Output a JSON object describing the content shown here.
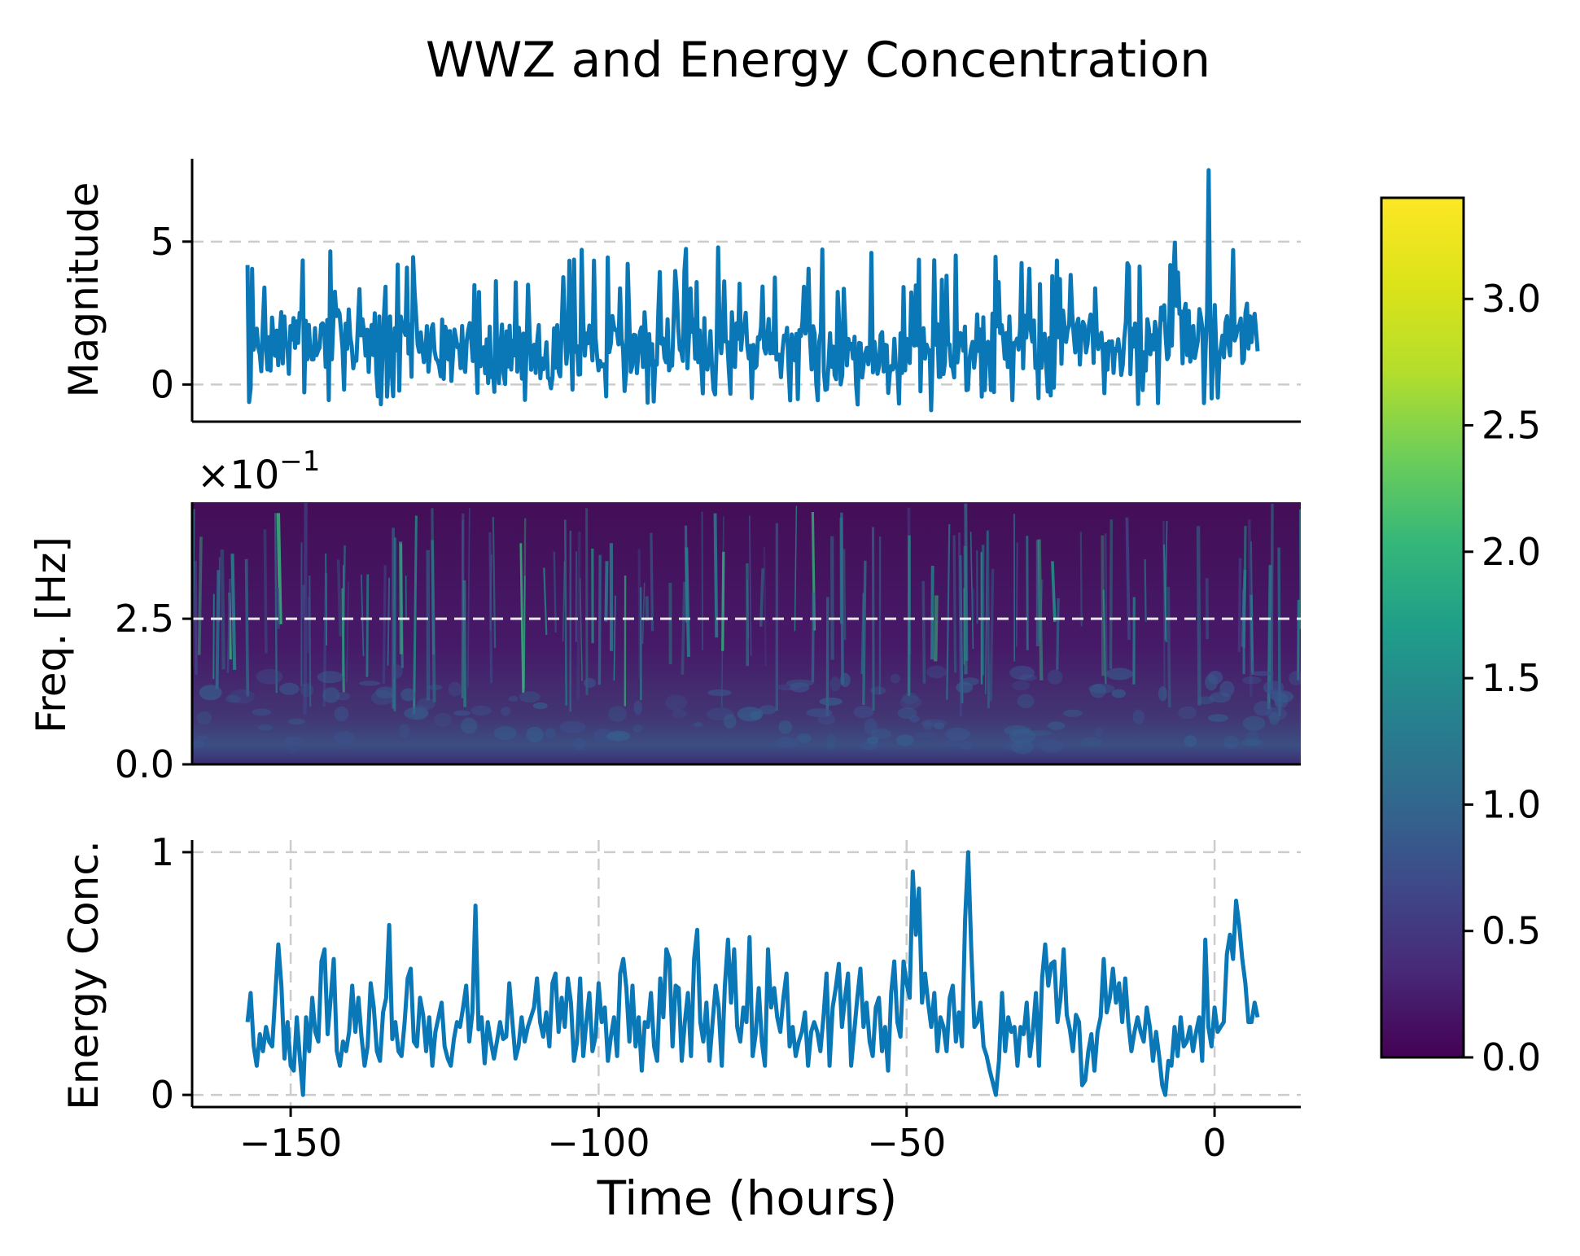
{
  "figure": {
    "title": "WWZ and Energy Concentration",
    "xlabel": "Time (hours)"
  },
  "chart_data": [
    {
      "panel": "magnitude",
      "type": "line",
      "ylabel": "Magnitude",
      "xlim": [
        -166,
        14
      ],
      "ylim": [
        -1.3,
        7.9
      ],
      "yticks": [
        0,
        5
      ],
      "ytick_labels": [
        "0",
        "5"
      ],
      "grid": "horizontal",
      "color": "#0a77b7",
      "x_start": -157,
      "x_end": 7,
      "n_points": 660,
      "notable_points": [
        {
          "x": -46,
          "y": -0.9,
          "label": "minimum"
        },
        {
          "x": -1,
          "y": 7.5,
          "label": "maximum"
        }
      ],
      "typical_range": [
        0.0,
        4.7
      ]
    },
    {
      "panel": "wwz",
      "type": "heatmap",
      "ylabel": "Freq. [Hz]",
      "offset_text": "×10",
      "offset_exponent": "−1",
      "xlim": [
        -166,
        14
      ],
      "ylim": [
        0.0,
        4.5
      ],
      "yticks": [
        0.0,
        2.5
      ],
      "ytick_labels": [
        "0.0",
        "2.5"
      ],
      "reference_line": 2.5,
      "colormap": "viridis",
      "colorbar": {
        "range": [
          0.0,
          3.4
        ],
        "ticks": [
          0.0,
          0.5,
          1.0,
          1.5,
          2.0,
          2.5,
          3.0
        ],
        "tick_labels": [
          "0.0",
          "0.5",
          "1.0",
          "1.5",
          "2.0",
          "2.5",
          "3.0"
        ]
      }
    },
    {
      "panel": "energy_concentration",
      "type": "line",
      "ylabel": "Energy Conc.",
      "xlim": [
        -166,
        14
      ],
      "ylim": [
        -0.05,
        1.05
      ],
      "yticks": [
        0,
        1
      ],
      "ytick_labels": [
        "0",
        "1"
      ],
      "xticks": [
        -150,
        -100,
        -50,
        0
      ],
      "xtick_labels": [
        "−150",
        "−100",
        "−50",
        "0"
      ],
      "grid": "both",
      "color": "#0a77b7",
      "x": [
        -157,
        -156.5,
        -156,
        -155.5,
        -155,
        -154.5,
        -154,
        -153.5,
        -153,
        -152,
        -151.5,
        -151,
        -150.5,
        -150,
        -149.5,
        -149,
        -148.5,
        -148,
        -147.5,
        -147,
        -146.5,
        -146,
        -145.5,
        -145,
        -144.5,
        -144,
        -143.5,
        -143,
        -142.5,
        -142,
        -141.5,
        -141,
        -140.5,
        -140,
        -139.5,
        -139,
        -138.5,
        -138,
        -137.5,
        -137,
        -136.5,
        -136,
        -135.5,
        -135,
        -134.5,
        -134,
        -133.5,
        -133,
        -132.5,
        -132,
        -131.5,
        -131,
        -130.5,
        -130,
        -129.5,
        -129,
        -128.5,
        -128,
        -127.5,
        -127,
        -126.5,
        -126,
        -125.5,
        -125,
        -124.5,
        -124,
        -123.5,
        -123,
        -122.5,
        -122,
        -121.5,
        -121,
        -120.5,
        -120,
        -119.5,
        -119,
        -118.5,
        -118,
        -117.5,
        -117,
        -116.5,
        -116,
        -115.5,
        -115,
        -114.5,
        -114,
        -113.5,
        -113,
        -112.5,
        -112,
        -111.5,
        -111,
        -110.5,
        -110,
        -109.5,
        -109,
        -108.5,
        -108,
        -107.5,
        -107,
        -106.5,
        -106,
        -105.5,
        -105,
        -104.5,
        -104,
        -103.5,
        -103,
        -102.5,
        -102,
        -101.5,
        -101,
        -100.5,
        -100,
        -99.5,
        -99,
        -98.5,
        -98,
        -97.5,
        -97,
        -96.5,
        -96,
        -95.5,
        -95,
        -94.5,
        -94,
        -93.5,
        -93,
        -92.5,
        -92,
        -91.5,
        -91,
        -90.5,
        -90,
        -89.5,
        -89,
        -88.5,
        -88,
        -87.5,
        -87,
        -86.5,
        -86,
        -85.5,
        -85,
        -84.5,
        -84,
        -83.5,
        -83,
        -82.5,
        -82,
        -81.5,
        -81,
        -80.5,
        -80,
        -79.5,
        -79,
        -78.5,
        -78,
        -77.5,
        -77,
        -76.5,
        -76,
        -75.5,
        -75,
        -74.5,
        -74,
        -73.5,
        -73,
        -72.5,
        -72,
        -71.5,
        -71,
        -70.5,
        -70,
        -69.5,
        -69,
        -68.5,
        -68,
        -67.5,
        -67,
        -66.5,
        -66,
        -65.5,
        -65,
        -64.5,
        -64,
        -63.5,
        -63,
        -62.5,
        -62,
        -61.5,
        -61,
        -60.5,
        -60,
        -59.5,
        -59,
        -58.5,
        -58,
        -57.5,
        -57,
        -56.5,
        -56,
        -55.5,
        -55,
        -54.5,
        -54,
        -53.5,
        -53,
        -52.5,
        -52,
        -51.5,
        -51,
        -50.5,
        -50,
        -49.5,
        -49,
        -48.5,
        -48,
        -47.5,
        -47,
        -46.5,
        -46,
        -45.5,
        -45,
        -44.5,
        -44,
        -43.5,
        -43,
        -42.5,
        -42,
        -41.5,
        -41,
        -40.5,
        -40,
        -39.5,
        -39,
        -38.5,
        -38,
        -37.5,
        -37,
        -36.5,
        -36,
        -35.5,
        -35,
        -34.5,
        -34,
        -33.5,
        -33,
        -32.5,
        -32,
        -31.5,
        -31,
        -30.5,
        -30,
        -29.5,
        -29,
        -28.5,
        -28,
        -27.5,
        -27,
        -26.5,
        -26,
        -25.5,
        -25,
        -24.5,
        -24,
        -23.5,
        -23,
        -22.5,
        -22,
        -21.5,
        -21,
        -20.5,
        -20,
        -19.5,
        -19,
        -18.5,
        -18,
        -17.5,
        -17,
        -16.5,
        -16,
        -15.5,
        -15,
        -14.5,
        -14,
        -13.5,
        -13,
        -12.5,
        -12,
        -11.5,
        -11,
        -10.5,
        -10,
        -9.5,
        -9,
        -8.5,
        -8,
        -7.5,
        -7,
        -6.5,
        -6,
        -5.5,
        -5,
        -4.5,
        -4,
        -3.5,
        -3,
        -2.5,
        -2,
        -1.5,
        -1,
        -0.5,
        0,
        0.5,
        1,
        1.5,
        2,
        2.5,
        3,
        3.5,
        4,
        4.5,
        5,
        5.5,
        6,
        6.5,
        7
      ],
      "y": [
        0.3,
        0.42,
        0.2,
        0.12,
        0.25,
        0.18,
        0.28,
        0.22,
        0.2,
        0.62,
        0.45,
        0.15,
        0.3,
        0.12,
        0.1,
        0.32,
        0.15,
        0.0,
        0.32,
        0.18,
        0.4,
        0.26,
        0.22,
        0.55,
        0.6,
        0.25,
        0.4,
        0.56,
        0.18,
        0.12,
        0.22,
        0.18,
        0.26,
        0.45,
        0.26,
        0.4,
        0.24,
        0.12,
        0.2,
        0.46,
        0.36,
        0.18,
        0.14,
        0.34,
        0.4,
        0.7,
        0.23,
        0.3,
        0.18,
        0.16,
        0.3,
        0.48,
        0.52,
        0.22,
        0.2,
        0.4,
        0.33,
        0.18,
        0.32,
        0.12,
        0.26,
        0.32,
        0.38,
        0.2,
        0.15,
        0.12,
        0.23,
        0.3,
        0.28,
        0.36,
        0.45,
        0.22,
        0.34,
        0.78,
        0.27,
        0.32,
        0.13,
        0.3,
        0.22,
        0.15,
        0.22,
        0.3,
        0.23,
        0.24,
        0.46,
        0.3,
        0.15,
        0.2,
        0.32,
        0.22,
        0.28,
        0.32,
        0.36,
        0.48,
        0.3,
        0.24,
        0.34,
        0.2,
        0.46,
        0.5,
        0.26,
        0.4,
        0.28,
        0.48,
        0.38,
        0.14,
        0.22,
        0.48,
        0.16,
        0.3,
        0.42,
        0.18,
        0.24,
        0.46,
        0.3,
        0.36,
        0.14,
        0.24,
        0.32,
        0.16,
        0.5,
        0.56,
        0.44,
        0.22,
        0.45,
        0.2,
        0.32,
        0.1,
        0.3,
        0.28,
        0.42,
        0.2,
        0.14,
        0.48,
        0.32,
        0.6,
        0.56,
        0.2,
        0.45,
        0.44,
        0.14,
        0.3,
        0.42,
        0.16,
        0.56,
        0.68,
        0.3,
        0.22,
        0.38,
        0.14,
        0.3,
        0.45,
        0.36,
        0.12,
        0.45,
        0.64,
        0.38,
        0.6,
        0.28,
        0.22,
        0.36,
        0.3,
        0.65,
        0.16,
        0.25,
        0.44,
        0.22,
        0.12,
        0.6,
        0.36,
        0.44,
        0.32,
        0.26,
        0.4,
        0.5,
        0.2,
        0.28,
        0.16,
        0.22,
        0.26,
        0.34,
        0.12,
        0.26,
        0.3,
        0.26,
        0.18,
        0.32,
        0.5,
        0.12,
        0.36,
        0.44,
        0.54,
        0.28,
        0.4,
        0.5,
        0.12,
        0.26,
        0.4,
        0.52,
        0.28,
        0.38,
        0.22,
        0.16,
        0.36,
        0.4,
        0.18,
        0.28,
        0.1,
        0.42,
        0.55,
        0.3,
        0.24,
        0.55,
        0.46,
        0.4,
        0.92,
        0.66,
        0.85,
        0.38,
        0.5,
        0.38,
        0.28,
        0.42,
        0.18,
        0.32,
        0.28,
        0.18,
        0.4,
        0.45,
        0.22,
        0.34,
        0.2,
        0.72,
        1.0,
        0.6,
        0.28,
        0.3,
        0.38,
        0.2,
        0.16,
        0.1,
        0.05,
        0.0,
        0.14,
        0.42,
        0.18,
        0.32,
        0.26,
        0.28,
        0.12,
        0.28,
        0.25,
        0.38,
        0.16,
        0.26,
        0.42,
        0.12,
        0.48,
        0.62,
        0.45,
        0.54,
        0.55,
        0.3,
        0.4,
        0.6,
        0.33,
        0.27,
        0.18,
        0.33,
        0.3,
        0.04,
        0.06,
        0.18,
        0.25,
        0.1,
        0.26,
        0.32,
        0.56,
        0.34,
        0.4,
        0.52,
        0.38,
        0.46,
        0.3,
        0.48,
        0.3,
        0.18,
        0.26,
        0.32,
        0.26,
        0.22,
        0.36,
        0.28,
        0.14,
        0.26,
        0.16,
        0.04,
        0.0,
        0.14,
        0.12,
        0.28,
        0.16,
        0.32,
        0.2,
        0.22,
        0.28,
        0.18,
        0.26,
        0.32,
        0.14,
        0.64,
        0.28,
        0.2,
        0.36,
        0.26,
        0.28,
        0.3,
        0.58,
        0.66,
        0.56,
        0.8,
        0.7,
        0.56,
        0.46,
        0.3,
        0.3,
        0.38,
        0.32
      ]
    }
  ]
}
